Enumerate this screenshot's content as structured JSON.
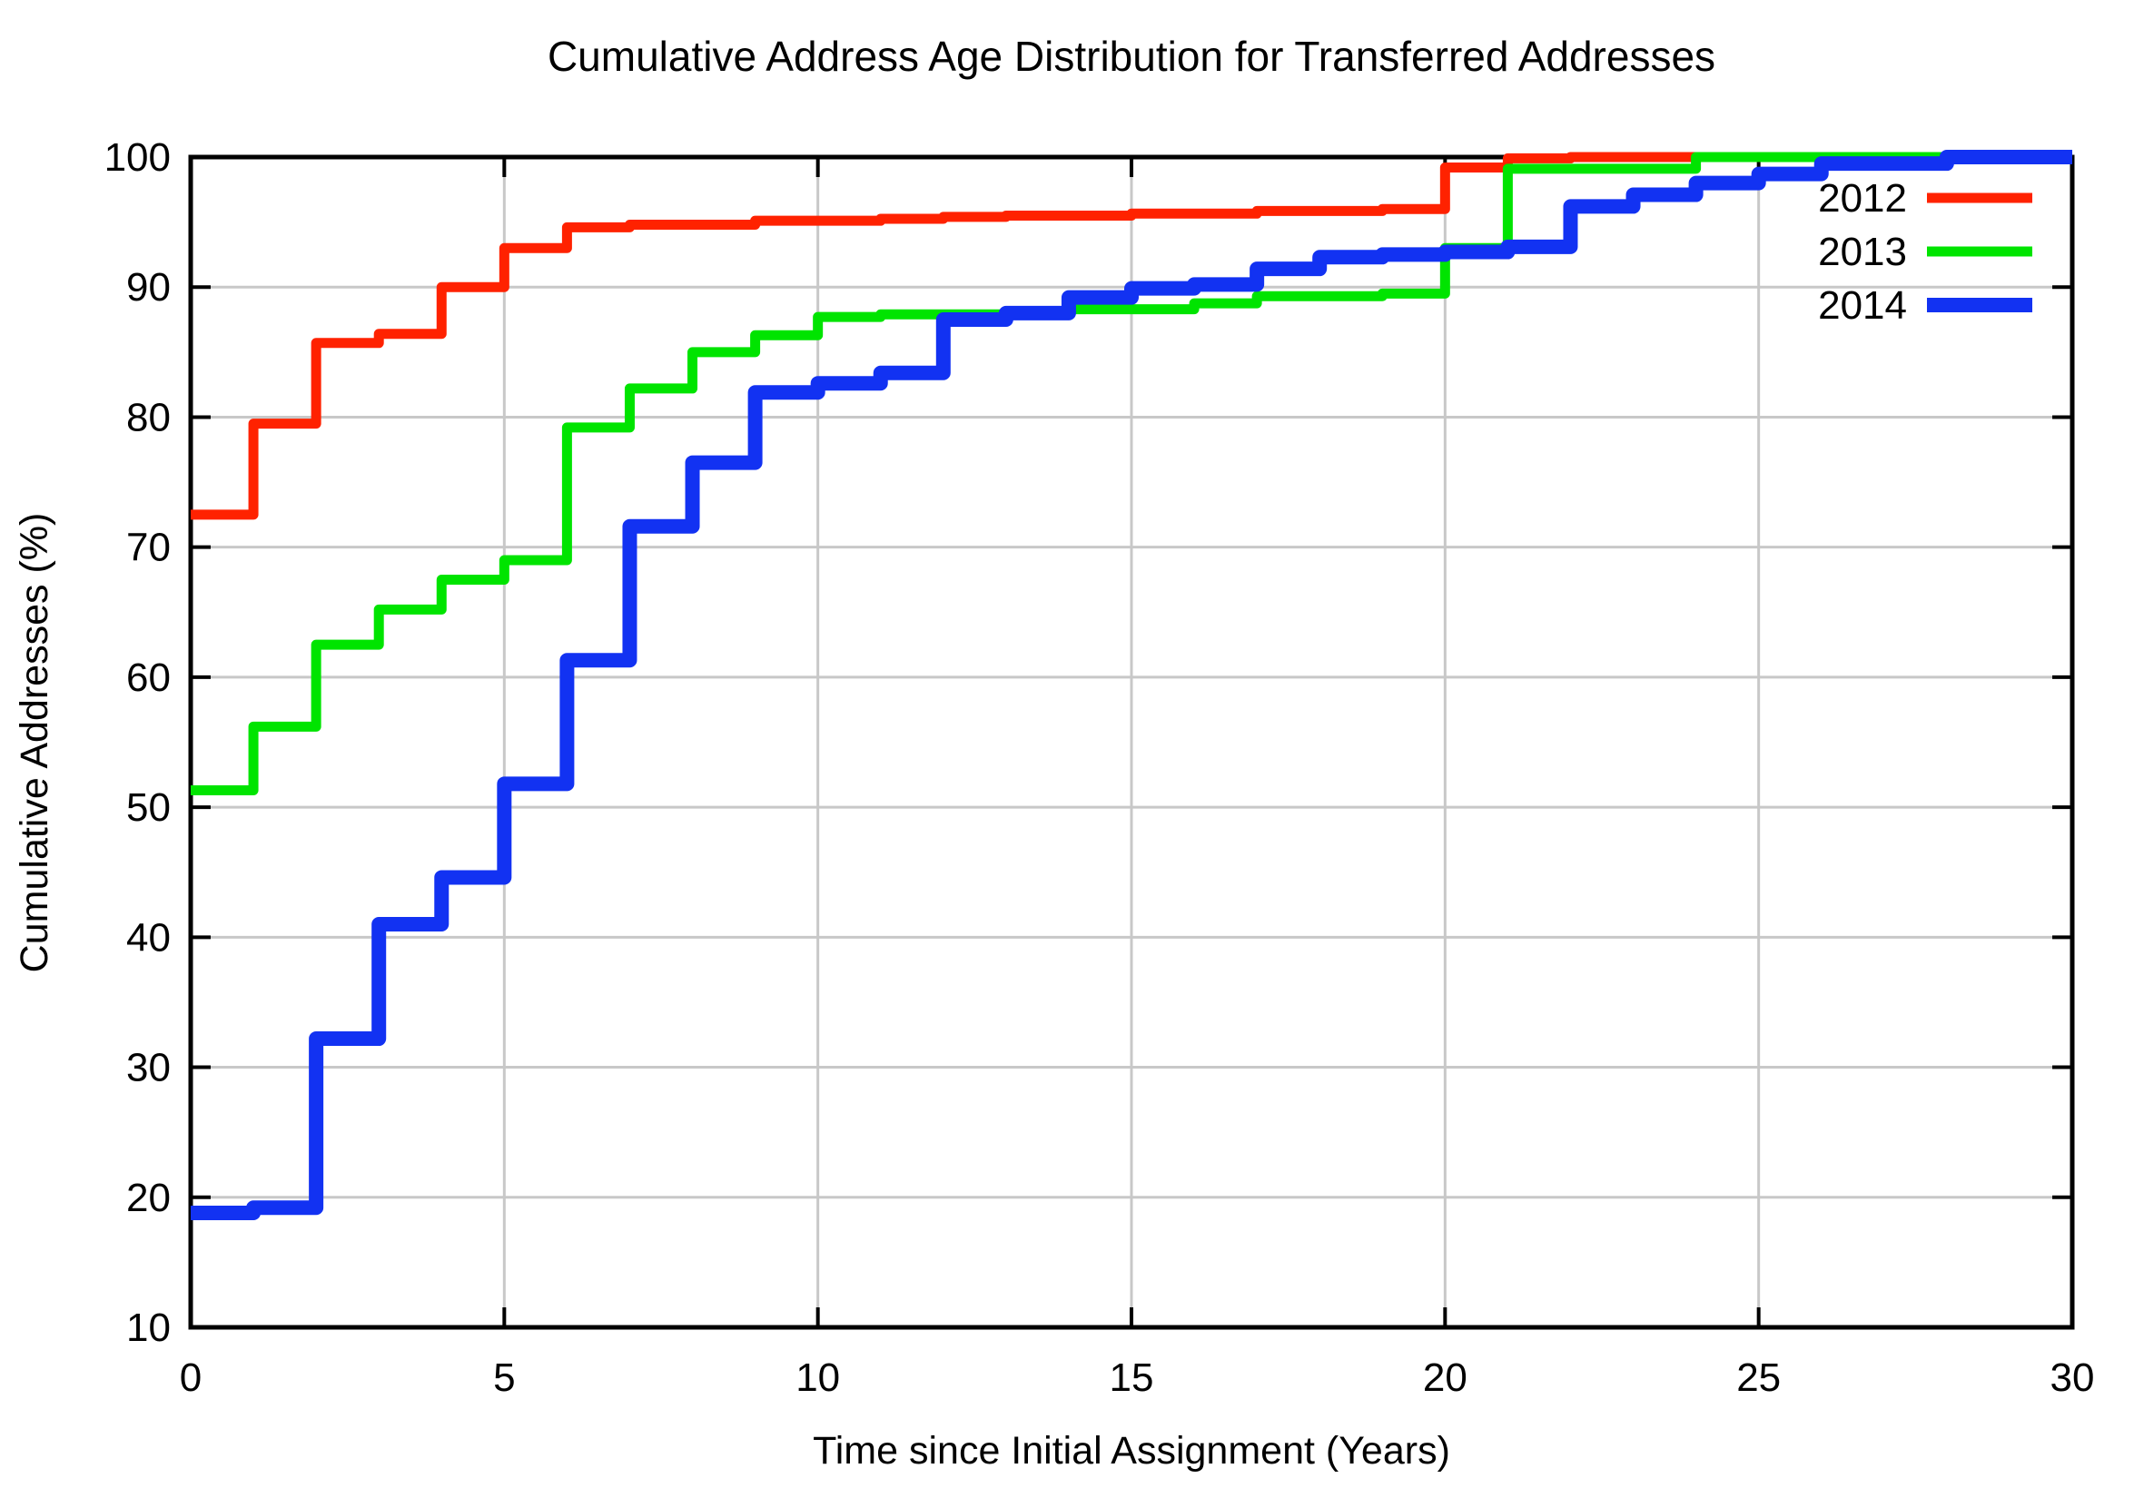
{
  "chart_data": {
    "type": "line",
    "subtype": "step-cdf",
    "title": "Cumulative Address Age Distribution for Transferred Addresses",
    "xlabel": "Time since Initial Assignment (Years)",
    "ylabel": "Cumulative Addresses (%)",
    "xlim": [
      0,
      30
    ],
    "ylim": [
      10,
      100
    ],
    "xticks": [
      0,
      5,
      10,
      15,
      20,
      25,
      30
    ],
    "yticks": [
      10,
      20,
      30,
      40,
      50,
      60,
      70,
      80,
      90,
      100
    ],
    "grid": true,
    "grid_color": "#c8c8c8",
    "axis_color": "#000000",
    "legend_position": "top-right-inside",
    "series": [
      {
        "name": "2012",
        "color": "#ff2200",
        "line_width": 11,
        "points": [
          [
            0,
            72.5
          ],
          [
            1,
            79.5
          ],
          [
            2,
            85.7
          ],
          [
            3,
            86.4
          ],
          [
            4,
            90.0
          ],
          [
            5,
            93.0
          ],
          [
            6,
            94.6
          ],
          [
            7,
            94.8
          ],
          [
            9,
            95.1
          ],
          [
            11,
            95.25
          ],
          [
            12,
            95.4
          ],
          [
            13,
            95.5
          ],
          [
            15,
            95.65
          ],
          [
            17,
            95.85
          ],
          [
            19,
            96.0
          ],
          [
            20,
            99.2
          ],
          [
            21,
            99.9
          ],
          [
            22,
            100.0
          ]
        ]
      },
      {
        "name": "2013",
        "color": "#00e400",
        "line_width": 11,
        "points": [
          [
            0,
            51.3
          ],
          [
            1,
            56.2
          ],
          [
            2,
            62.5
          ],
          [
            3,
            65.2
          ],
          [
            4,
            67.5
          ],
          [
            5,
            69.0
          ],
          [
            6,
            79.2
          ],
          [
            7,
            82.2
          ],
          [
            8,
            85.0
          ],
          [
            9,
            86.3
          ],
          [
            10,
            87.7
          ],
          [
            11,
            87.9
          ],
          [
            13,
            88.1
          ],
          [
            14,
            88.3
          ],
          [
            16,
            88.75
          ],
          [
            17,
            89.3
          ],
          [
            19,
            89.5
          ],
          [
            20,
            93.0
          ],
          [
            21,
            99.1
          ],
          [
            24,
            100.0
          ]
        ]
      },
      {
        "name": "2014",
        "color": "#1232f2",
        "line_width": 16,
        "points": [
          [
            0,
            18.8
          ],
          [
            1,
            19.2
          ],
          [
            2,
            32.2
          ],
          [
            3,
            41.0
          ],
          [
            4,
            44.6
          ],
          [
            5,
            51.8
          ],
          [
            6,
            61.3
          ],
          [
            7,
            71.6
          ],
          [
            8,
            76.5
          ],
          [
            9,
            81.9
          ],
          [
            10,
            82.6
          ],
          [
            11,
            83.4
          ],
          [
            12,
            87.5
          ],
          [
            13,
            88.0
          ],
          [
            14,
            89.2
          ],
          [
            15,
            89.9
          ],
          [
            16,
            90.2
          ],
          [
            17,
            91.4
          ],
          [
            18,
            92.3
          ],
          [
            19,
            92.5
          ],
          [
            20,
            92.7
          ],
          [
            21,
            93.1
          ],
          [
            22,
            96.2
          ],
          [
            23,
            97.1
          ],
          [
            24,
            98.0
          ],
          [
            25,
            98.7
          ],
          [
            26,
            99.5
          ],
          [
            28,
            100.0
          ]
        ]
      }
    ]
  }
}
